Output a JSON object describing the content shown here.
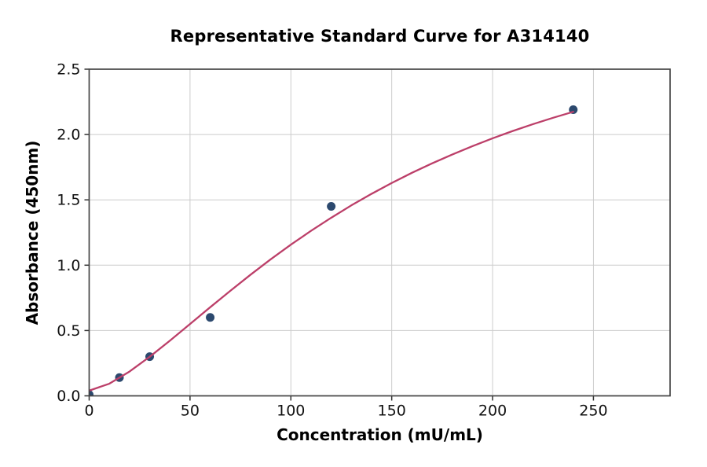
{
  "chart_data": {
    "type": "scatter",
    "title": "Representative Standard Curve for A314140",
    "xlabel": "Concentration (mU/mL)",
    "ylabel": "Absorbance (450nm)",
    "xlim": [
      0,
      288
    ],
    "ylim": [
      0,
      2.5
    ],
    "grid": true,
    "legend": "none",
    "xticks": [
      0,
      50,
      100,
      150,
      200,
      250
    ],
    "xtick_labels": [
      "0",
      "50",
      "100",
      "150",
      "200",
      "250"
    ],
    "yticks": [
      0,
      0.5,
      1.0,
      1.5,
      2.0,
      2.5
    ],
    "ytick_labels": [
      "0.0",
      "0.5",
      "1.0",
      "1.5",
      "2.0",
      "2.5"
    ],
    "series": [
      {
        "name": "standard-points",
        "kind": "scatter",
        "x": [
          0,
          15,
          30,
          60,
          120,
          240
        ],
        "y": [
          0.01,
          0.14,
          0.3,
          0.6,
          1.45,
          2.19
        ]
      },
      {
        "name": "fitted-curve",
        "kind": "line",
        "x": [
          0,
          10,
          20,
          30,
          40,
          50,
          60,
          70,
          80,
          90,
          100,
          110,
          120,
          130,
          140,
          150,
          160,
          170,
          180,
          190,
          200,
          210,
          220,
          230,
          240
        ],
        "y": [
          0.04,
          0.093,
          0.186,
          0.299,
          0.422,
          0.55,
          0.678,
          0.804,
          0.927,
          1.045,
          1.157,
          1.263,
          1.363,
          1.458,
          1.546,
          1.629,
          1.707,
          1.779,
          1.847,
          1.911,
          1.971,
          2.027,
          2.079,
          2.128,
          2.174
        ]
      }
    ],
    "colors": {
      "point": "#2c496e",
      "curve": "#bc3f69",
      "grid": "#cccccc",
      "spine": "#444444",
      "tick": "#333333",
      "text": "#111111"
    }
  }
}
